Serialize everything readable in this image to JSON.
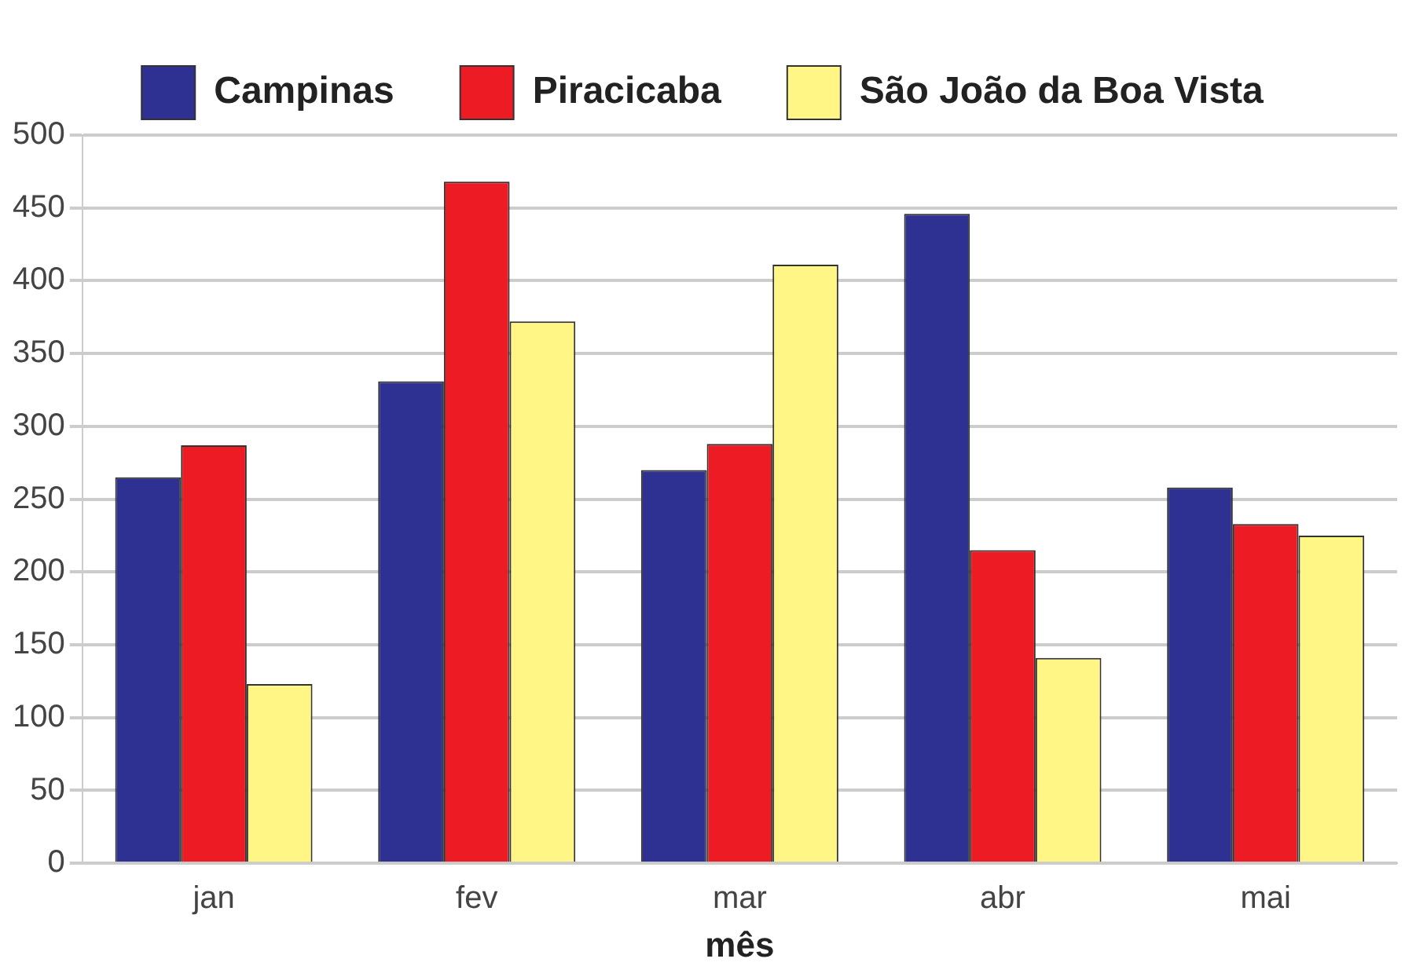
{
  "chart_data": {
    "type": "bar",
    "xlabel": "mês",
    "categories": [
      "jan",
      "fev",
      "mar",
      "abr",
      "mai"
    ],
    "series": [
      {
        "name": "Campinas",
        "color": "#2e3192",
        "values": [
          265,
          331,
          270,
          446,
          258
        ]
      },
      {
        "name": "Piracicaba",
        "color": "#ed1c24",
        "values": [
          287,
          468,
          288,
          215,
          233
        ]
      },
      {
        "name": "São João da Boa Vista",
        "color": "#fff685",
        "values": [
          123,
          372,
          411,
          141,
          225
        ]
      }
    ],
    "ylim": [
      0,
      500
    ],
    "yticks": [
      0,
      50,
      100,
      150,
      200,
      250,
      300,
      350,
      400,
      450,
      500
    ],
    "grid": "y",
    "legend": "top"
  }
}
